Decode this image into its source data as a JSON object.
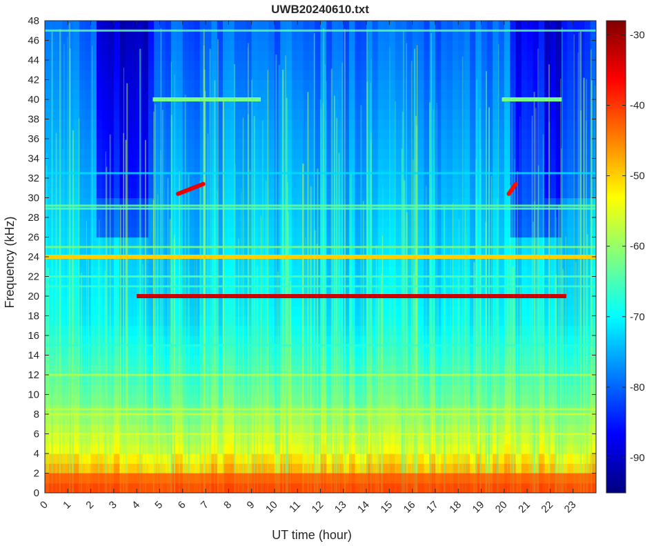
{
  "chart_data": {
    "type": "heatmap",
    "title": "UWB20240610.txt",
    "xlabel": "UT time (hour)",
    "ylabel": "Frequency (kHz)",
    "xlim": [
      0,
      24
    ],
    "ylim": [
      0,
      48
    ],
    "x_ticks": [
      "0",
      "1",
      "2",
      "3",
      "4",
      "5",
      "6",
      "7",
      "8",
      "9",
      "10",
      "11",
      "12",
      "13",
      "14",
      "15",
      "16",
      "17",
      "18",
      "19",
      "20",
      "21",
      "22",
      "23"
    ],
    "y_ticks": [
      "0",
      "2",
      "4",
      "6",
      "8",
      "10",
      "12",
      "14",
      "16",
      "18",
      "20",
      "22",
      "24",
      "26",
      "28",
      "30",
      "32",
      "34",
      "36",
      "38",
      "40",
      "42",
      "44",
      "46",
      "48"
    ],
    "colormap": "jet",
    "clim": [
      -95,
      -28
    ],
    "colorbar_ticks": [
      "-30",
      "-40",
      "-50",
      "-60",
      "-70",
      "-80",
      "-90"
    ],
    "colorbar_tick_values": [
      -30,
      -40,
      -50,
      -60,
      -70,
      -80,
      -90
    ],
    "grid": false,
    "features": [
      {
        "label": "VLF transmitter 20 kHz",
        "freq_khz": 20.0,
        "t_start": 4.0,
        "t_end": 22.7,
        "level_db": -33
      },
      {
        "label": "VLF transmitter 24 kHz",
        "freq_khz": 24.0,
        "t_start": 0.0,
        "t_end": 24.0,
        "level_db": -50
      },
      {
        "label": "40 kHz line",
        "freq_khz": 40.0,
        "t_start": 4.7,
        "t_end": 9.4,
        "level_db": -62
      },
      {
        "label": "40 kHz line",
        "freq_khz": 40.0,
        "t_start": 19.9,
        "t_end": 22.5,
        "level_db": -62
      },
      {
        "label": "chirp ~30-31 kHz",
        "freq_khz": 30.5,
        "t_start": 5.8,
        "t_end": 6.9,
        "level_db": -35
      },
      {
        "label": "chirp ~30.5 kHz",
        "freq_khz": 30.5,
        "t_start": 20.2,
        "t_end": 20.5,
        "level_db": -37
      },
      {
        "label": "low-frequency band",
        "freq_khz": 2.0,
        "t_start": 0.0,
        "t_end": 24.0,
        "level_db": -42
      }
    ]
  }
}
